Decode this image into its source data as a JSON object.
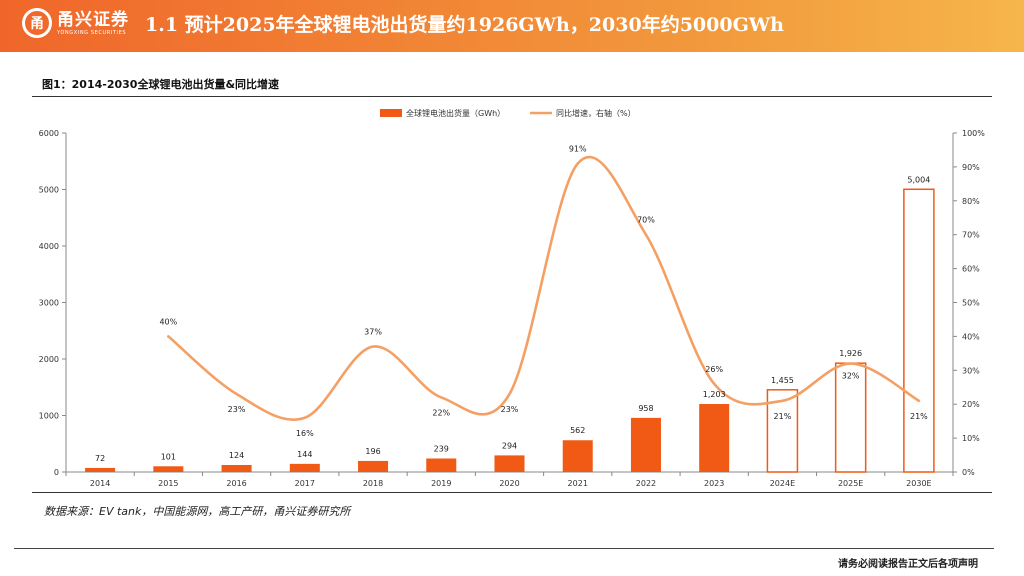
{
  "header": {
    "logo_mark": "甬",
    "logo_cn": "甬兴证券",
    "logo_en": "YONGXING SECURITIES",
    "title": "1.1 预计2025年全球锂电池出货量约1926GWh，2030年约5000GWh"
  },
  "figure": {
    "title": "图1：2014-2030全球锂电池出货量&同比增速",
    "source": "数据来源：EV tank，中国能源网，高工产研，甬兴证券研究所"
  },
  "footer": {
    "disclaimer": "请务必阅读报告正文后各项声明"
  },
  "colors": {
    "bar": "#f05a14",
    "line": "#f4a064",
    "accent": "#f0662a"
  },
  "chart_data": {
    "type": "bar+line",
    "categories": [
      "2014",
      "2015",
      "2016",
      "2017",
      "2018",
      "2019",
      "2020",
      "2021",
      "2022",
      "2023",
      "2024E",
      "2025E",
      "2030E"
    ],
    "series": [
      {
        "name": "全球锂电池出货量（GWh）",
        "kind": "bar",
        "axis": "left",
        "values": [
          72,
          101,
          124,
          144,
          196,
          239,
          294,
          562,
          958,
          1203,
          1455,
          1926,
          5004
        ],
        "labels": [
          "72",
          "101",
          "124",
          "144",
          "196",
          "239",
          "294",
          "562",
          "958",
          "1,203",
          "1,455",
          "1,926",
          "5,004"
        ],
        "forecast": [
          false,
          false,
          false,
          false,
          false,
          false,
          false,
          false,
          false,
          false,
          true,
          true,
          true
        ]
      },
      {
        "name": "同比增速，右轴（%）",
        "kind": "line",
        "axis": "right",
        "values": [
          null,
          40,
          23,
          16,
          37,
          22,
          23,
          91,
          70,
          26,
          21,
          32,
          21
        ],
        "labels": [
          "",
          "40%",
          "23%",
          "16%",
          "37%",
          "22%",
          "23%",
          "91%",
          "70%",
          "26%",
          "21%",
          "32%",
          "21%"
        ]
      }
    ],
    "y_left": {
      "min": 0,
      "max": 6000,
      "ticks": [
        "0",
        "1000",
        "2000",
        "3000",
        "4000",
        "5000",
        "6000"
      ]
    },
    "y_right": {
      "min": 0,
      "max": 100,
      "ticks": [
        "0%",
        "10%",
        "20%",
        "30%",
        "40%",
        "50%",
        "60%",
        "70%",
        "80%",
        "90%",
        "100%"
      ]
    },
    "legend_position": "top-center",
    "grid": false
  }
}
